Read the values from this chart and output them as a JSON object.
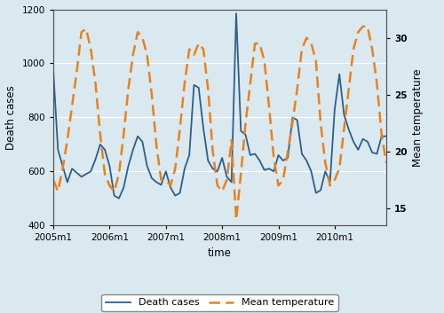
{
  "background_color": "#dae8f0",
  "plot_bg_color": "#dae8f0",
  "xlabel": "time",
  "ylabel_left": "Death cases",
  "ylabel_right": "Mean temperature",
  "xlim": [
    0,
    71
  ],
  "ylim_left": [
    400,
    1200
  ],
  "ylim_right": [
    13.5,
    32.5
  ],
  "xtick_positions": [
    0,
    12,
    24,
    36,
    48,
    60
  ],
  "xtick_labels": [
    "2005m1",
    "2006m1",
    "2007m1",
    "2008m1",
    "2009m1",
    "2010m1"
  ],
  "ytick_left": [
    400,
    600,
    800,
    1000,
    1200
  ],
  "ytick_right": [
    15,
    20,
    25,
    30
  ],
  "death_cases": [
    975,
    680,
    620,
    560,
    610,
    595,
    580,
    590,
    600,
    645,
    700,
    680,
    620,
    510,
    500,
    540,
    620,
    680,
    730,
    710,
    620,
    575,
    560,
    550,
    600,
    540,
    510,
    520,
    610,
    660,
    920,
    910,
    760,
    640,
    610,
    600,
    650,
    580,
    560,
    1185,
    750,
    735,
    660,
    665,
    640,
    605,
    610,
    600,
    660,
    640,
    650,
    800,
    790,
    665,
    640,
    600,
    520,
    530,
    600,
    560,
    830,
    960,
    810,
    755,
    710,
    680,
    720,
    710,
    670,
    665,
    730,
    730
  ],
  "mean_temp": [
    17.5,
    16.5,
    18.5,
    21.0,
    24.0,
    27.0,
    30.5,
    30.8,
    29.0,
    26.0,
    21.5,
    18.0,
    17.0,
    16.5,
    18.0,
    21.5,
    25.5,
    28.5,
    30.5,
    30.0,
    28.5,
    25.0,
    20.5,
    17.5,
    17.5,
    17.0,
    18.5,
    22.0,
    26.0,
    29.0,
    28.5,
    29.5,
    29.0,
    25.5,
    20.0,
    17.0,
    16.5,
    17.5,
    21.0,
    14.0,
    18.0,
    22.5,
    26.0,
    29.5,
    29.5,
    28.0,
    24.0,
    19.5,
    17.0,
    17.5,
    20.0,
    22.5,
    25.5,
    29.0,
    30.0,
    29.5,
    28.0,
    22.5,
    19.0,
    17.0,
    17.5,
    18.5,
    22.0,
    25.5,
    29.0,
    30.5,
    31.0,
    31.0,
    29.0,
    26.0,
    21.5,
    19.0
  ],
  "death_color": "#2c5f8a",
  "temp_color": "#e8821a",
  "death_linewidth": 1.3,
  "temp_linewidth": 1.8,
  "legend_death_label": "Death cases",
  "legend_temp_label": "Mean temperature"
}
